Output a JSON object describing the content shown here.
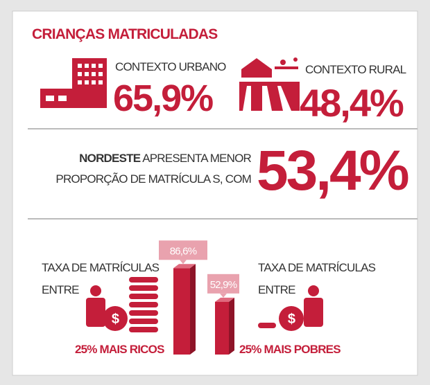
{
  "title": "CRIANÇAS MATRICULADAS",
  "urban": {
    "label": "CONTEXTO URBANO",
    "value": "65,9%"
  },
  "rural": {
    "label": "CONTEXTO RURAL",
    "value": "48,4%"
  },
  "nordeste": {
    "bold": "NORDESTE",
    "line1": " APRESENTA MENOR",
    "line2": "PROPORÇÃO DE MATRÍCULA S, COM",
    "value": "53,4%"
  },
  "rich": {
    "line1": "TAXA DE MATRÍCULAS",
    "line2": "ENTRE",
    "group": "25% MAIS RICOS"
  },
  "poor": {
    "line1": "TAXA DE MATRÍCULAS",
    "line2": "ENTRE",
    "group": "25% MAIS POBRES"
  },
  "bars": [
    {
      "value": 86.6,
      "label": "86,6%"
    },
    {
      "value": 52.9,
      "label": "52,9%"
    }
  ]
}
